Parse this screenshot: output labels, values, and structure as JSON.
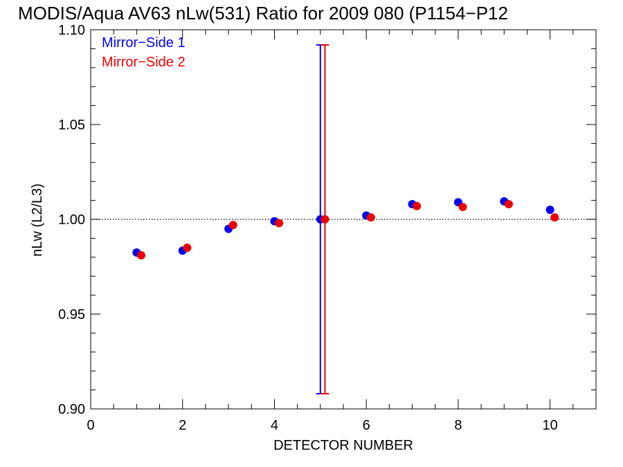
{
  "chart_data": {
    "type": "scatter",
    "title": "MODIS/Aqua AV63 nLw(531) Ratio for 2009 080 (P1154−P12",
    "xlabel": "DETECTOR NUMBER",
    "ylabel": "nLw (L2/L3)",
    "xlim": [
      0,
      11
    ],
    "ylim": [
      0.9,
      1.1
    ],
    "x_ticks": [
      0,
      2,
      4,
      6,
      8,
      10
    ],
    "x_tick_labels": [
      "0",
      "2",
      "4",
      "6",
      "8",
      "10"
    ],
    "y_ticks": [
      0.9,
      0.95,
      1.0,
      1.05,
      1.1
    ],
    "y_tick_labels": [
      "0.90",
      "0.95",
      "1.00",
      "1.05",
      "1.10"
    ],
    "reference_line": 1.0,
    "grid": false,
    "legend_placement": "top-left",
    "series": [
      {
        "name": "Mirror−Side 1",
        "color": "#0000ee",
        "x": [
          1,
          2,
          3,
          4,
          5,
          6,
          7,
          8,
          9,
          10
        ],
        "y": [
          0.9825,
          0.9835,
          0.995,
          0.999,
          1.0,
          1.002,
          1.008,
          1.009,
          1.0095,
          1.005
        ],
        "error_bar": {
          "x": 5,
          "low": 0.908,
          "high": 1.092
        }
      },
      {
        "name": "Mirror−Side 2",
        "color": "#ee0000",
        "x": [
          1.1,
          2.1,
          3.1,
          4.1,
          5.1,
          6.1,
          7.1,
          8.1,
          9.1,
          10.1
        ],
        "y": [
          0.981,
          0.985,
          0.997,
          0.998,
          1.0,
          1.001,
          1.007,
          1.0065,
          1.008,
          1.001
        ],
        "error_bar": {
          "x": 5.1,
          "low": 0.908,
          "high": 1.092
        }
      }
    ]
  }
}
